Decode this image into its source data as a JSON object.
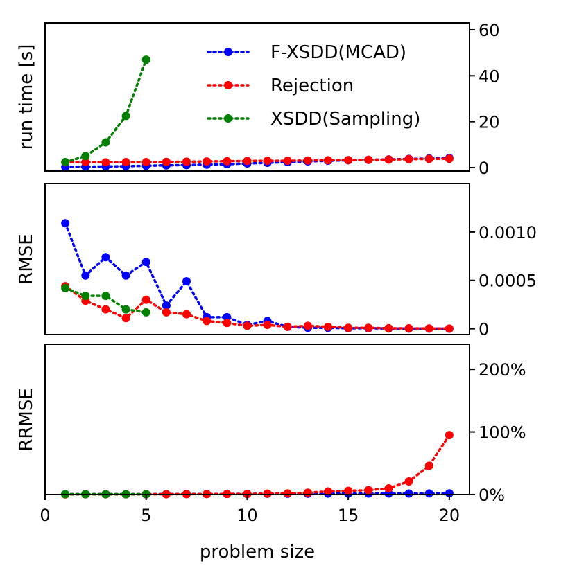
{
  "chart_data": [
    {
      "type": "line",
      "panel": "top",
      "ylabel": "run time [s]",
      "ylim": [
        -1.5,
        63
      ],
      "yticks": [
        {
          "value": 0,
          "label": "0"
        },
        {
          "value": 20,
          "label": "20"
        },
        {
          "value": 40,
          "label": "40"
        },
        {
          "value": 60,
          "label": "60"
        }
      ],
      "legend_position": "top-right",
      "series": [
        {
          "name": "F-XSDD(MCAD)",
          "color": "#0000ff",
          "x": [
            1,
            2,
            3,
            4,
            5,
            6,
            7,
            8,
            9,
            10,
            11,
            12,
            13,
            14,
            15,
            16,
            17,
            18,
            19,
            20
          ],
          "values": [
            0.3,
            0.4,
            0.5,
            0.6,
            0.8,
            1.0,
            1.1,
            1.3,
            1.5,
            1.8,
            2.1,
            2.4,
            2.7,
            3.0,
            3.2,
            3.4,
            3.6,
            3.8,
            4.0,
            4.2
          ]
        },
        {
          "name": "Rejection",
          "color": "#ff0000",
          "x": [
            1,
            2,
            3,
            4,
            5,
            6,
            7,
            8,
            9,
            10,
            11,
            12,
            13,
            14,
            15,
            16,
            17,
            18,
            19,
            20
          ],
          "values": [
            2.3,
            2.4,
            2.3,
            2.4,
            2.4,
            2.5,
            2.6,
            2.7,
            2.8,
            2.9,
            3.0,
            3.0,
            3.1,
            3.2,
            3.3,
            3.4,
            3.5,
            3.7,
            3.8,
            3.9
          ]
        },
        {
          "name": "XSDD(Sampling)",
          "color": "#008000",
          "x": [
            1,
            2,
            3,
            4,
            5
          ],
          "values": [
            2.4,
            5.0,
            11.0,
            22.5,
            47.0
          ]
        }
      ]
    },
    {
      "type": "line",
      "panel": "middle",
      "ylabel": "RMSE",
      "ylim": [
        -6e-05,
        0.0015
      ],
      "yticks": [
        {
          "value": 0,
          "label": "0"
        },
        {
          "value": 0.0005,
          "label": "0.0005"
        },
        {
          "value": 0.001,
          "label": "0.0010"
        }
      ],
      "series": [
        {
          "name": "F-XSDD(MCAD)",
          "color": "#0000ff",
          "x": [
            1,
            2,
            3,
            4,
            5,
            6,
            7,
            8,
            9,
            10,
            11,
            12,
            13,
            14,
            15,
            16,
            17,
            18,
            19,
            20
          ],
          "values": [
            0.00109,
            0.00055,
            0.00074,
            0.00055,
            0.00069,
            0.00024,
            0.00049,
            0.00012,
            0.00012,
            4e-05,
            8e-05,
            2e-05,
            1e-05,
            1e-05,
            5e-06,
            5e-06,
            3e-06,
            2e-06,
            2e-06,
            1e-06
          ]
        },
        {
          "name": "Rejection",
          "color": "#ff0000",
          "x": [
            1,
            2,
            3,
            4,
            5,
            6,
            7,
            8,
            9,
            10,
            11,
            12,
            13,
            14,
            15,
            16,
            17,
            18,
            19,
            20
          ],
          "values": [
            0.00044,
            0.00029,
            0.0002,
            0.00011,
            0.0003,
            0.00017,
            0.00015,
            8e-05,
            6e-05,
            3e-05,
            4e-05,
            2e-05,
            3e-05,
            2e-05,
            1e-05,
            1e-05,
            5e-06,
            4e-06,
            3e-06,
            2e-06
          ]
        },
        {
          "name": "XSDD(Sampling)",
          "color": "#008000",
          "x": [
            1,
            2,
            3,
            4,
            5
          ],
          "values": [
            0.00042,
            0.00034,
            0.00034,
            0.0002,
            0.00017
          ]
        }
      ]
    },
    {
      "type": "line",
      "panel": "bottom",
      "ylabel": "RRMSE",
      "xlabel": "problem size",
      "ylim": [
        0,
        2.4
      ],
      "xlim": [
        0,
        21
      ],
      "xticks": [
        {
          "value": 0,
          "label": "0"
        },
        {
          "value": 5,
          "label": "5"
        },
        {
          "value": 10,
          "label": "10"
        },
        {
          "value": 15,
          "label": "15"
        },
        {
          "value": 20,
          "label": "20"
        }
      ],
      "yticks": [
        {
          "value": 0,
          "label": "0%"
        },
        {
          "value": 1,
          "label": "100%"
        },
        {
          "value": 2,
          "label": "200%"
        }
      ],
      "series": [
        {
          "name": "F-XSDD(MCAD)",
          "color": "#0000ff",
          "x": [
            1,
            2,
            3,
            4,
            5,
            6,
            7,
            8,
            9,
            10,
            11,
            12,
            13,
            14,
            15,
            16,
            17,
            18,
            19,
            20
          ],
          "values": [
            0.005,
            0.005,
            0.005,
            0.006,
            0.006,
            0.007,
            0.008,
            0.008,
            0.009,
            0.01,
            0.012,
            0.013,
            0.014,
            0.015,
            0.015,
            0.016,
            0.016,
            0.017,
            0.018,
            0.02
          ]
        },
        {
          "name": "Rejection",
          "color": "#ff0000",
          "x": [
            1,
            2,
            3,
            4,
            5,
            6,
            7,
            8,
            9,
            10,
            11,
            12,
            13,
            14,
            15,
            16,
            17,
            18,
            19,
            20
          ],
          "values": [
            0.003,
            0.004,
            0.004,
            0.004,
            0.005,
            0.006,
            0.007,
            0.008,
            0.009,
            0.01,
            0.015,
            0.02,
            0.03,
            0.05,
            0.06,
            0.07,
            0.1,
            0.21,
            0.46,
            0.95
          ]
        },
        {
          "name": "XSDD(Sampling)",
          "color": "#008000",
          "x": [
            1,
            2,
            3,
            4,
            5
          ],
          "values": [
            0.005,
            0.005,
            0.005,
            0.005,
            0.005
          ]
        }
      ]
    }
  ]
}
